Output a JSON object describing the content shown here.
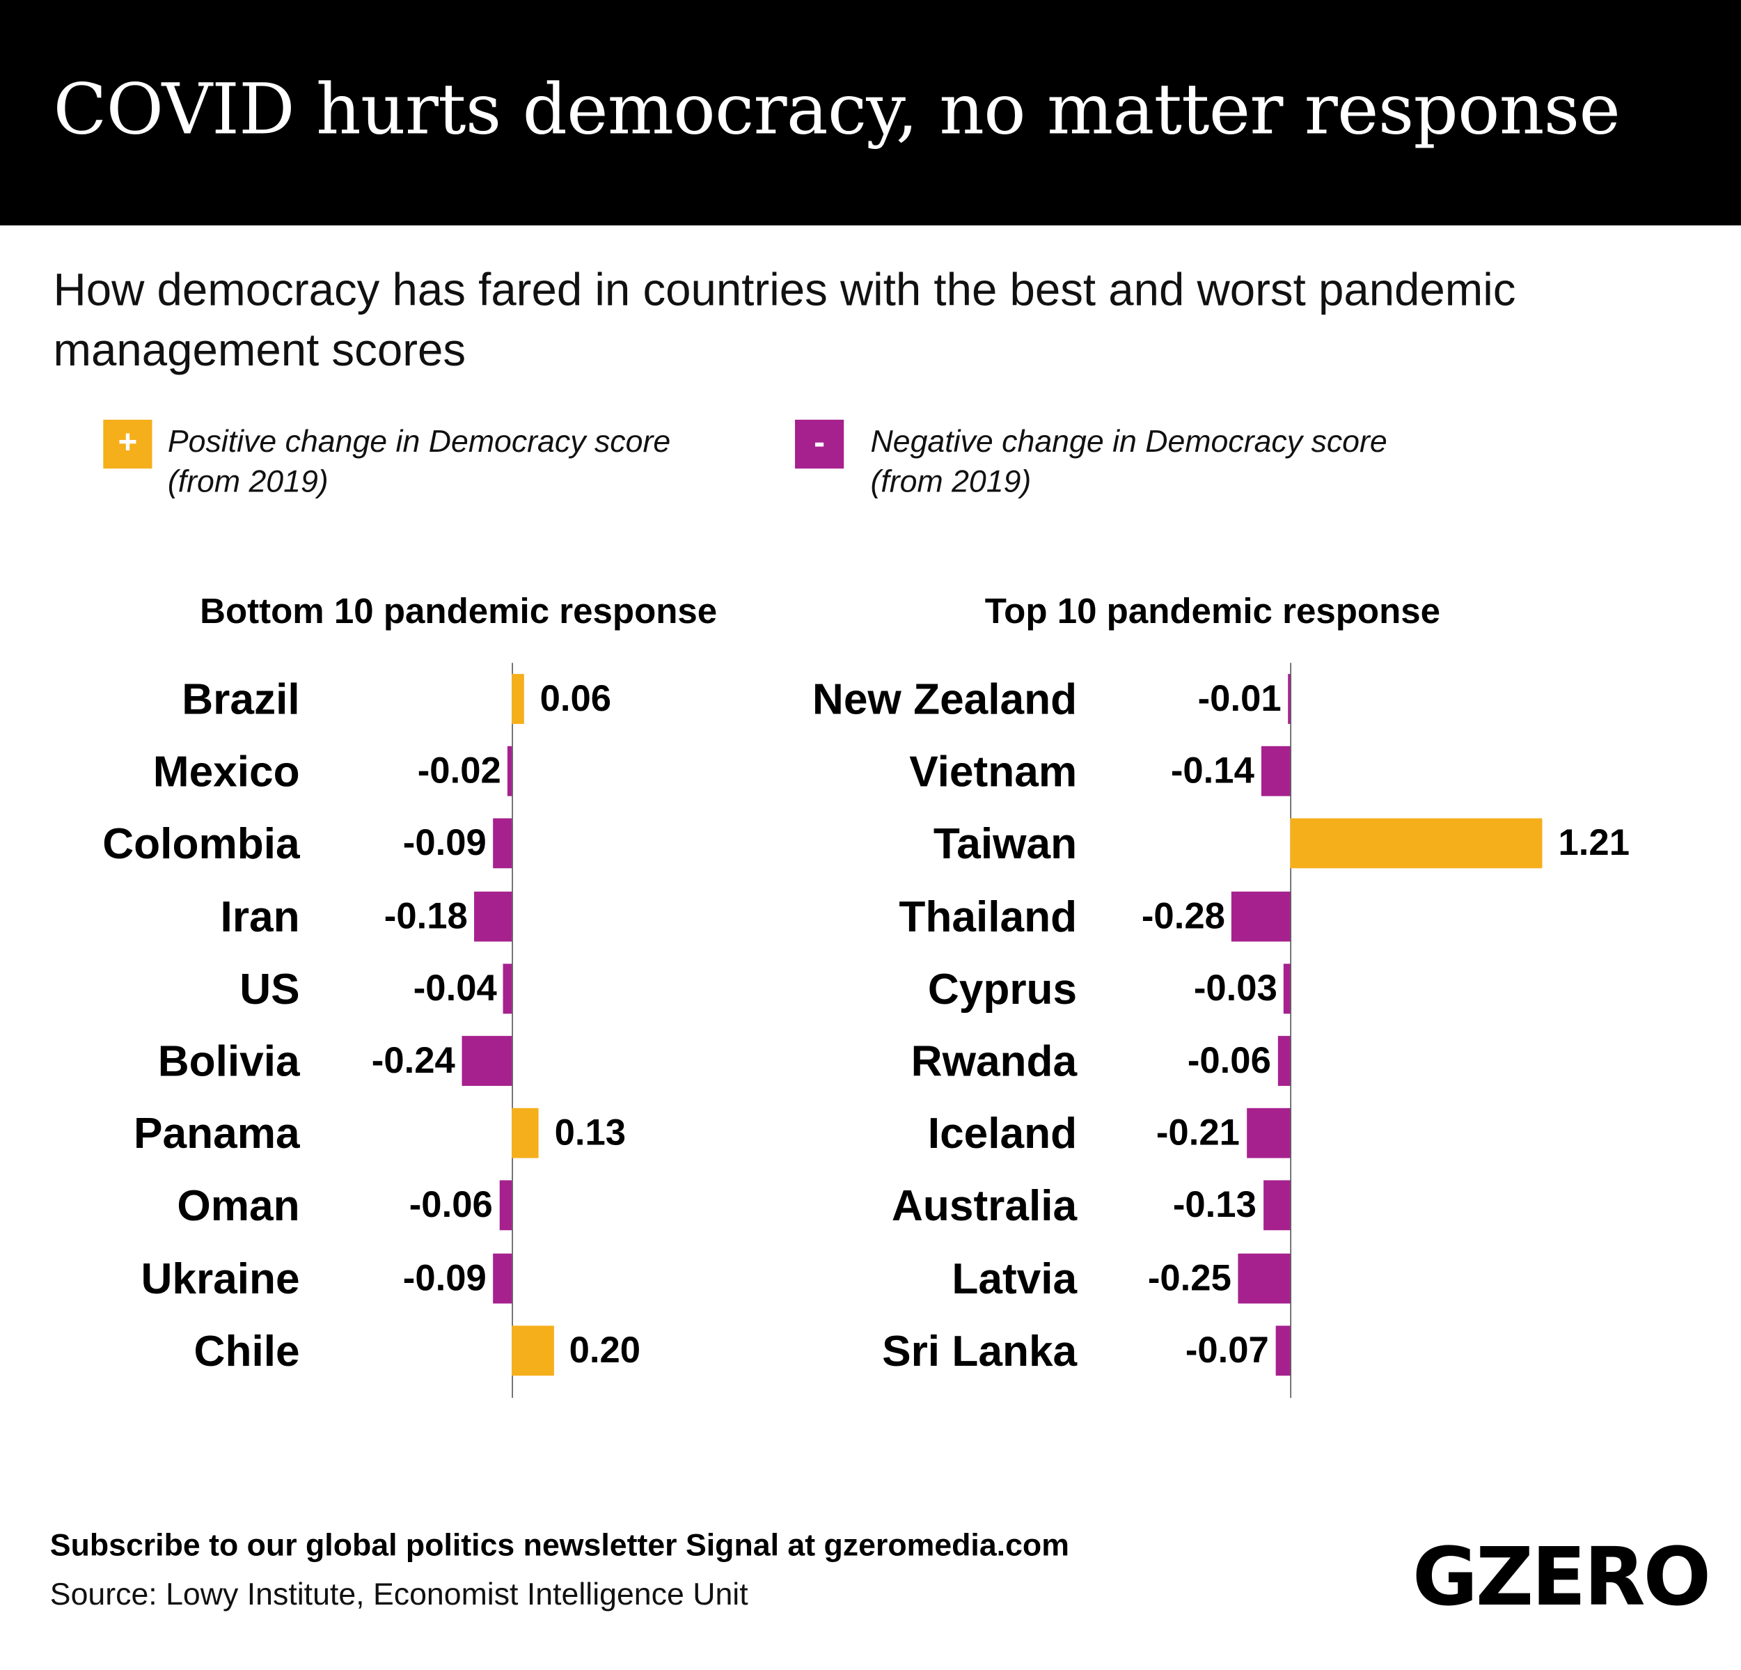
{
  "title": "COVID hurts democracy, no matter response",
  "subtitle": "How democracy has fared in countries with the best and worst pandemic management scores",
  "colors": {
    "positive": "#F5AF1B",
    "negative": "#A6218E"
  },
  "legend": [
    {
      "symbol": "+",
      "label_line1": "Positive change in Democracy score",
      "label_line2": "(from 2019)"
    },
    {
      "symbol": "-",
      "label_line1": "Negative change in Democracy score",
      "label_line2": "(from 2019)"
    }
  ],
  "chart_data": [
    {
      "type": "bar",
      "orientation": "horizontal",
      "title": "Bottom 10 pandemic response",
      "categories": [
        "Brazil",
        "Mexico",
        "Colombia",
        "Iran",
        "US",
        "Bolivia",
        "Panama",
        "Oman",
        "Ukraine",
        "Chile"
      ],
      "values": [
        0.06,
        -0.02,
        -0.09,
        -0.18,
        -0.04,
        -0.24,
        0.13,
        -0.06,
        -0.09,
        0.2
      ],
      "labels": [
        "0.06",
        "-0.02",
        "-0.09",
        "-0.18",
        "-0.04",
        "-0.24",
        "0.13",
        "-0.06",
        "-0.09",
        "0.20"
      ]
    },
    {
      "type": "bar",
      "orientation": "horizontal",
      "title": "Top 10 pandemic response",
      "categories": [
        "New Zealand",
        "Vietnam",
        "Taiwan",
        "Thailand",
        "Cyprus",
        "Rwanda",
        "Iceland",
        "Australia",
        "Latvia",
        "Sri Lanka"
      ],
      "values": [
        -0.01,
        -0.14,
        1.21,
        -0.28,
        -0.03,
        -0.06,
        -0.21,
        -0.13,
        -0.25,
        -0.07
      ],
      "labels": [
        "-0.01",
        "-0.14",
        "1.21",
        "-0.28",
        "-0.03",
        "-0.06",
        "-0.21",
        "-0.13",
        "-0.25",
        "-0.07"
      ]
    }
  ],
  "footer": {
    "subscribe": "Subscribe to our global politics newsletter Signal at gzeromedia.com",
    "source": "Source: Lowy Institute, Economist Intelligence Unit",
    "logo": "GZERO"
  }
}
